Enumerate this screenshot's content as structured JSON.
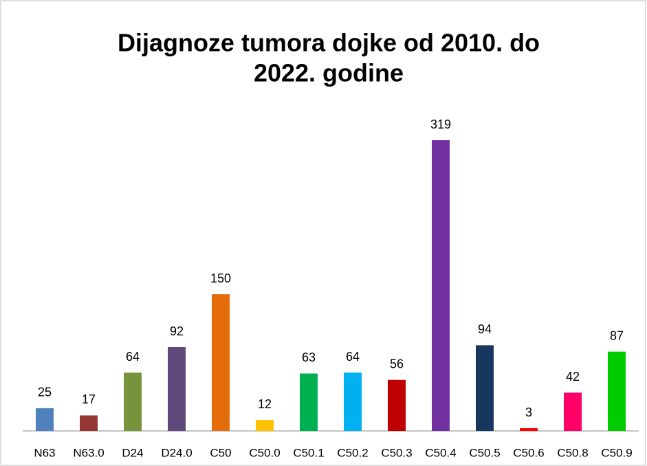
{
  "chart_data": {
    "type": "bar",
    "title": [
      "Dijagnoze tumora dojke od 2010. do",
      "2022. godine"
    ],
    "categories": [
      "N63",
      "N63.0",
      "D24",
      "D24.0",
      "C50",
      "C50.0",
      "C50.1",
      "C50.2",
      "C50.3",
      "C50.4",
      "C50.5",
      "C50.6",
      "C50.8",
      "C50.9"
    ],
    "values": [
      25,
      17,
      64,
      92,
      150,
      12,
      63,
      64,
      56,
      319,
      94,
      3,
      42,
      87
    ],
    "colors": [
      "#4f81bd",
      "#953735",
      "#77933c",
      "#604a7b",
      "#e46c0a",
      "#ffc000",
      "#00b050",
      "#00b0f0",
      "#c00000",
      "#7030a0",
      "#17375e",
      "#ff0000",
      "#ff0066",
      "#00cc00"
    ]
  }
}
